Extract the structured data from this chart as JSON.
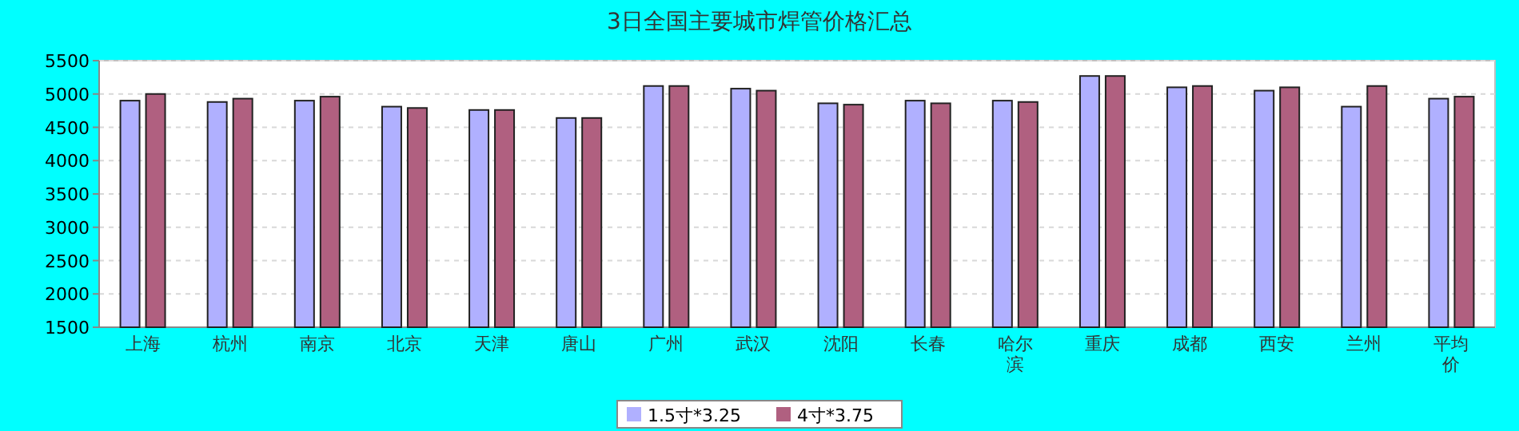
{
  "chart_data": {
    "type": "bar",
    "title": "3日全国主要城市焊管价格汇总",
    "categories": [
      "上海",
      "杭州",
      "南京",
      "北京",
      "天津",
      "唐山",
      "广州",
      "武汉",
      "沈阳",
      "长春",
      "哈尔滨",
      "重庆",
      "成都",
      "西安",
      "兰州",
      "平均价"
    ],
    "series": [
      {
        "name": "1.5寸*3.25",
        "color": "#b0b0ff",
        "values": [
          4900,
          4880,
          4900,
          4810,
          4760,
          4640,
          5120,
          5080,
          4860,
          4900,
          4900,
          5270,
          5100,
          5050,
          4810,
          4930
        ]
      },
      {
        "name": "4寸*3.75",
        "color": "#b06080",
        "values": [
          5000,
          4930,
          4960,
          4790,
          4760,
          4640,
          5120,
          5050,
          4840,
          4860,
          4880,
          5270,
          5120,
          5100,
          5120,
          4960
        ]
      }
    ],
    "ylim": [
      1500,
      5500
    ],
    "yticks": [
      1500,
      2000,
      2500,
      3000,
      3500,
      4000,
      4500,
      5000,
      5500
    ],
    "grid": "y",
    "legend": "bottom"
  }
}
